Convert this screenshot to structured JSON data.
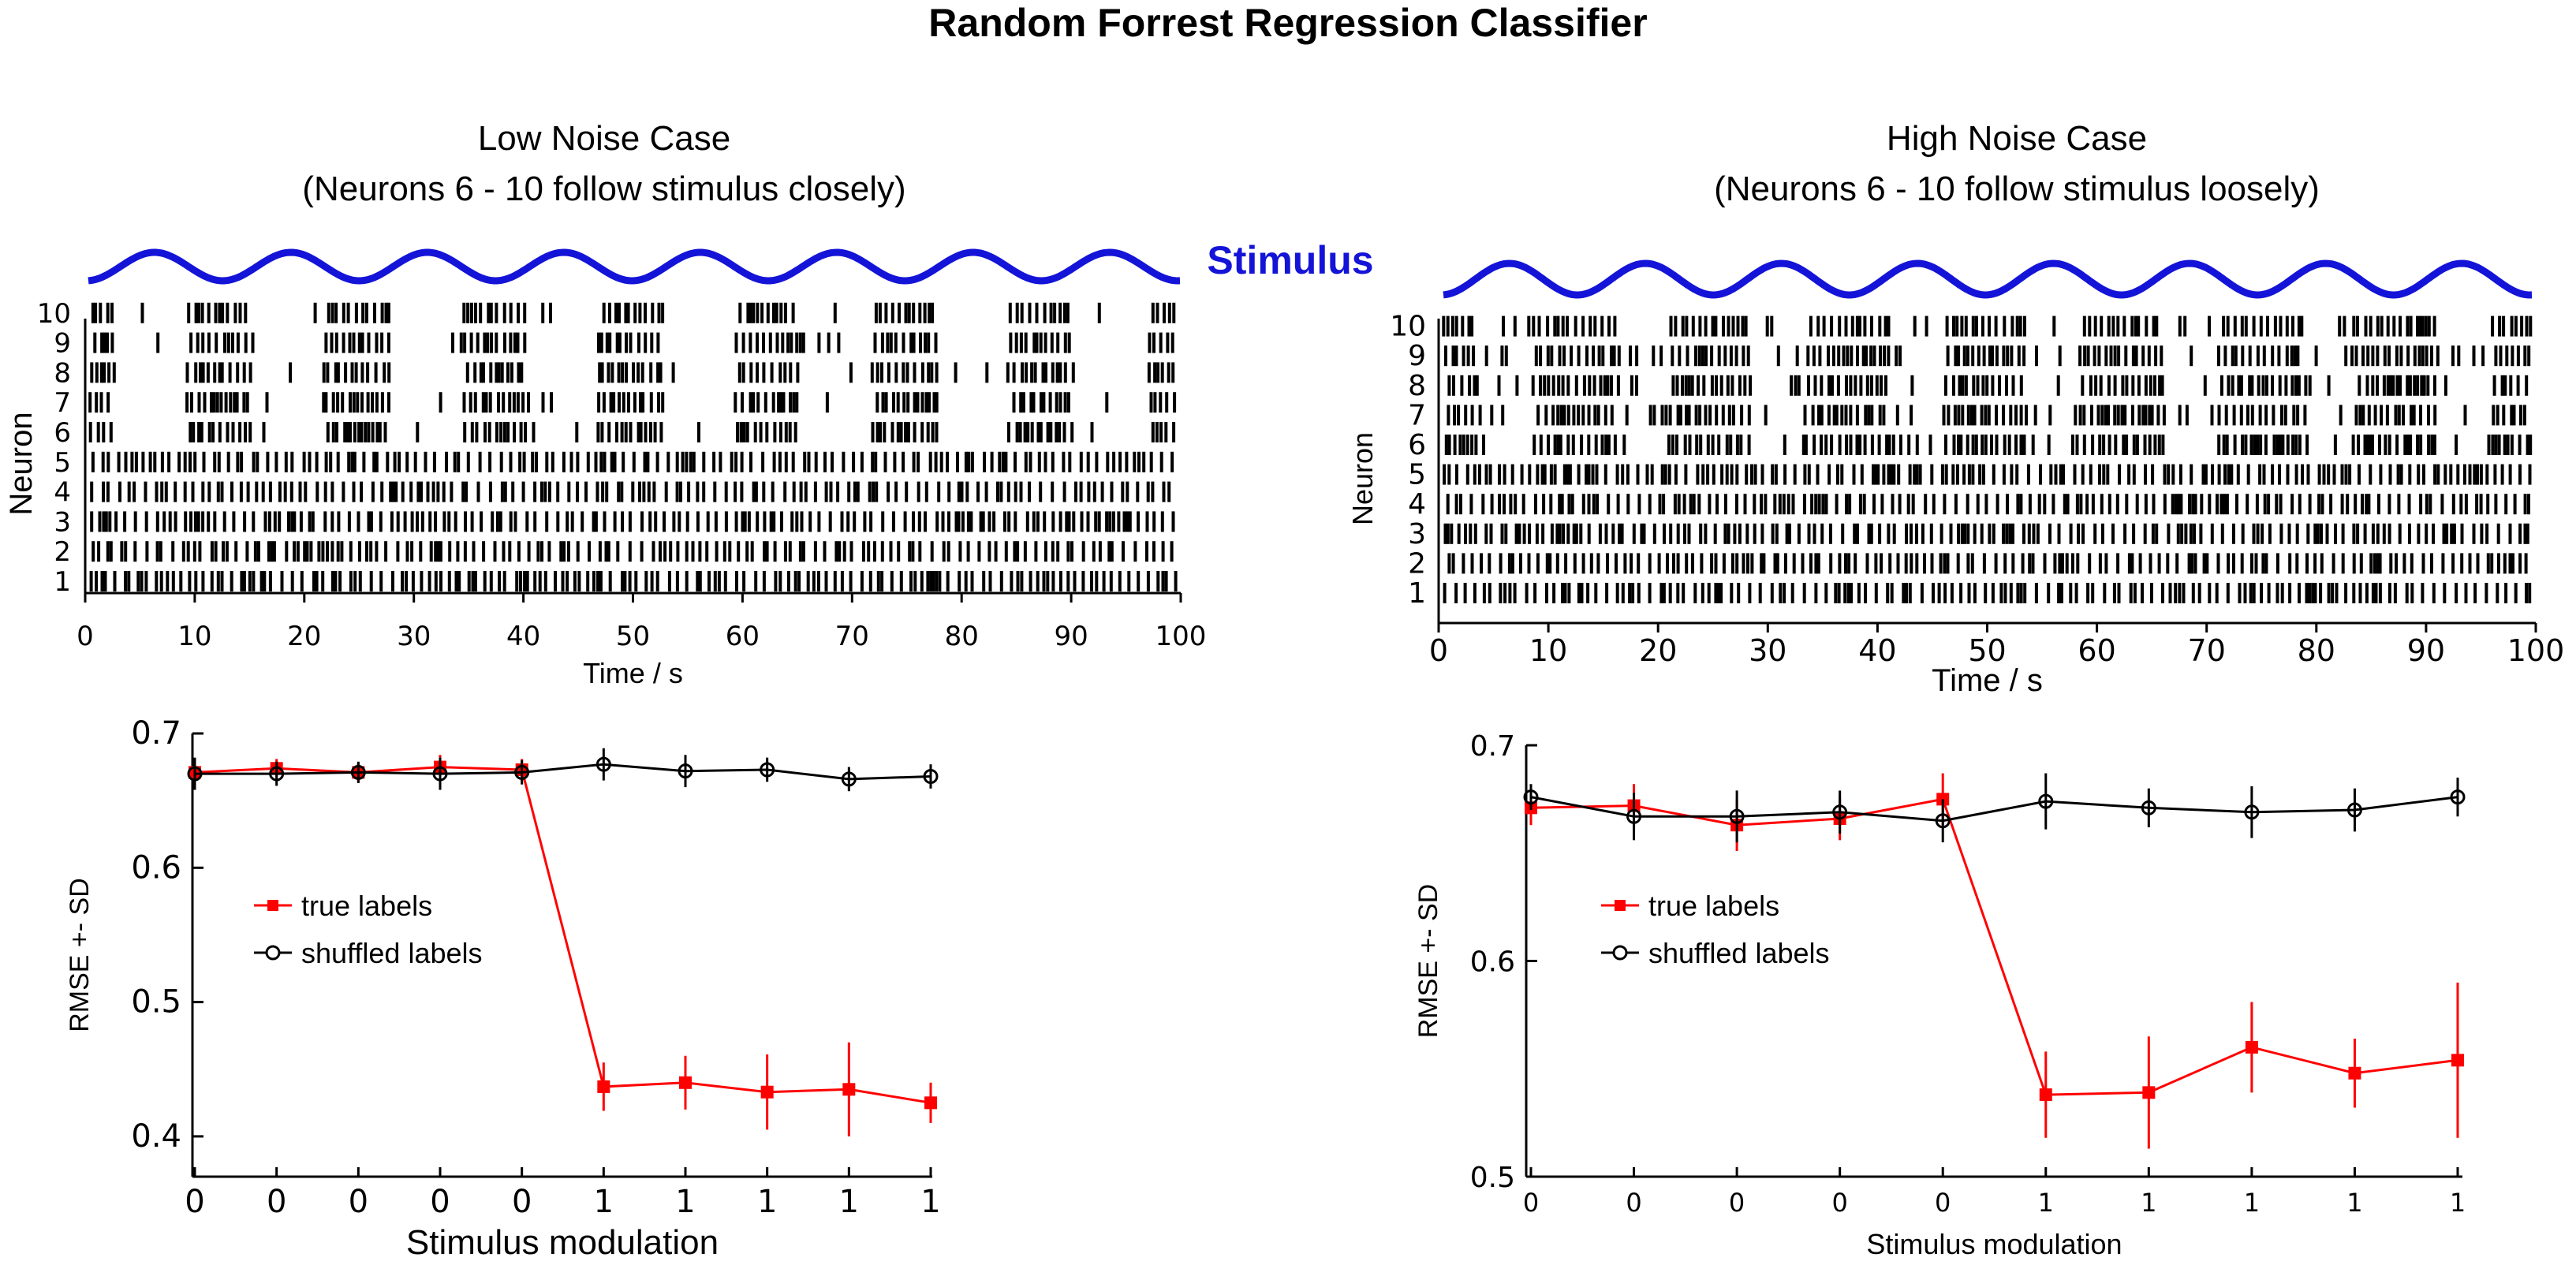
{
  "figure_title": "Random Forrest Regression Classifier",
  "stimulus_label": "Stimulus",
  "colors": {
    "stimulus": "#1414d8",
    "true_labels": "#ff0000",
    "shuffled_labels": "#000000",
    "spikes": "#000000"
  },
  "chart_data": [
    {
      "type": "raster",
      "panel": "top-left",
      "title_lines": [
        "Low Noise Case",
        "(Neurons 6 - 10 follow stimulus closely)"
      ],
      "xlabel": "Time / s",
      "ylabel": "Neuron",
      "xlim": [
        0,
        100
      ],
      "xticks": [
        0,
        10,
        20,
        30,
        40,
        50,
        60,
        70,
        80,
        90,
        100
      ],
      "neurons": [
        1,
        2,
        3,
        4,
        5,
        6,
        7,
        8,
        9,
        10
      ],
      "stimulus": {
        "shape": "sinusoid",
        "period_s": 12.5
      },
      "spike_seed": 11
    },
    {
      "type": "raster",
      "panel": "top-right",
      "title_lines": [
        "High Noise Case",
        "(Neurons 6 - 10 follow stimulus loosely)"
      ],
      "xlabel": "Time / s",
      "ylabel": "Neuron",
      "xlim": [
        0,
        100
      ],
      "xticks": [
        0,
        10,
        20,
        30,
        40,
        50,
        60,
        70,
        80,
        90,
        100
      ],
      "neurons": [
        1,
        2,
        3,
        4,
        5,
        6,
        7,
        8,
        9,
        10
      ],
      "stimulus": {
        "shape": "sinusoid",
        "period_s": 12.5
      },
      "spike_seed": 29
    },
    {
      "type": "line",
      "panel": "bottom-left",
      "xlabel": "Stimulus modulation",
      "ylabel": "RMSE +- SD",
      "categories": [
        "0",
        "0",
        "0",
        "0",
        "0",
        "1",
        "1",
        "1",
        "1",
        "1"
      ],
      "ylim": [
        0.37,
        0.7
      ],
      "yticks": [
        0.4,
        0.5,
        0.6,
        0.7
      ],
      "ytick_labels": [
        "0.4",
        "0.5",
        "0.6",
        "0.7"
      ],
      "legend_position": "center-left",
      "series": [
        {
          "name": "true labels",
          "marker": "square",
          "values": [
            0.671,
            0.674,
            0.671,
            0.675,
            0.673,
            0.437,
            0.44,
            0.433,
            0.435,
            0.425
          ],
          "errors": [
            0.01,
            0.007,
            0.007,
            0.009,
            0.008,
            0.018,
            0.02,
            0.028,
            0.035,
            0.015
          ]
        },
        {
          "name": "shuffled labels",
          "marker": "circle",
          "values": [
            0.67,
            0.67,
            0.671,
            0.67,
            0.671,
            0.677,
            0.672,
            0.673,
            0.666,
            0.668
          ],
          "errors": [
            0.012,
            0.009,
            0.008,
            0.012,
            0.009,
            0.012,
            0.012,
            0.009,
            0.009,
            0.009
          ]
        }
      ]
    },
    {
      "type": "line",
      "panel": "bottom-right",
      "xlabel": "Stimulus modulation",
      "ylabel": "RMSE +- SD",
      "categories": [
        "0",
        "0",
        "0",
        "0",
        "0",
        "1",
        "1",
        "1",
        "1",
        "1"
      ],
      "ylim": [
        0.5,
        0.7
      ],
      "yticks": [
        0.5,
        0.6,
        0.7
      ],
      "ytick_labels": [
        "0.5",
        "0.6",
        "0.7"
      ],
      "legend_position": "center-left",
      "series": [
        {
          "name": "true labels",
          "marker": "square",
          "values": [
            0.671,
            0.672,
            0.663,
            0.666,
            0.675,
            0.538,
            0.539,
            0.56,
            0.548,
            0.554
          ],
          "errors": [
            0.008,
            0.01,
            0.012,
            0.01,
            0.012,
            0.02,
            0.026,
            0.021,
            0.016,
            0.036
          ]
        },
        {
          "name": "shuffled labels",
          "marker": "circle",
          "values": [
            0.676,
            0.667,
            0.667,
            0.669,
            0.665,
            0.674,
            0.671,
            0.669,
            0.67,
            0.676
          ],
          "errors": [
            0.006,
            0.011,
            0.012,
            0.01,
            0.01,
            0.013,
            0.009,
            0.012,
            0.01,
            0.009
          ]
        }
      ]
    }
  ]
}
